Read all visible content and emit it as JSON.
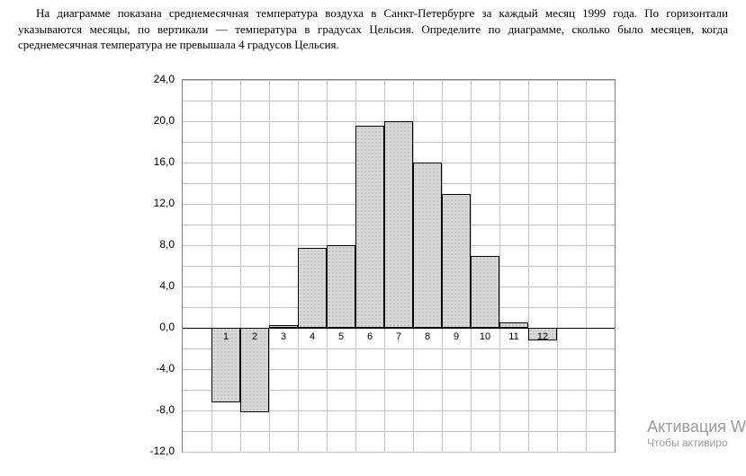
{
  "problem": {
    "text": "На диаграмме показана среднемесячная температура воздуха в Санкт-Петербурге за каждый месяц 1999 года. По горизонтали указываются месяцы, по вертикали — температура в градусах Цельсия. Определите по диаграмме, сколько было месяцев, когда среднемесячная температура не превышала 4 градусов Цельсия."
  },
  "chart": {
    "type": "bar",
    "ylim": [
      -12,
      24
    ],
    "ytick_step_major": 4,
    "ytick_step_minor": 2,
    "y_labels": [
      "-12,0",
      "-8,0",
      "-4,0",
      "0,0",
      "4,0",
      "8,0",
      "12,0",
      "16,0",
      "20,0",
      "24,0"
    ],
    "y_label_values": [
      -12,
      -8,
      -4,
      0,
      4,
      8,
      12,
      16,
      20,
      24
    ],
    "x_labels": [
      "1",
      "2",
      "3",
      "4",
      "5",
      "6",
      "7",
      "8",
      "9",
      "10",
      "11",
      "12"
    ],
    "values": [
      -7.2,
      -8.2,
      0.3,
      7.7,
      8.0,
      19.6,
      20.0,
      16.0,
      13.0,
      7.0,
      0.5,
      -1.2
    ],
    "bar_fill": "#d8d8d8",
    "bar_border": "#000000",
    "grid_color": "#c0c0c0",
    "plot_border": "#808080",
    "background": "#ffffff",
    "bar_width_ratio": 1.0,
    "label_fontfamily": "Verdana",
    "label_fontsize": 12,
    "xlabel_fontsize": 11
  },
  "watermark": {
    "title": "Активация W",
    "sub": "Чтобы активиро"
  }
}
